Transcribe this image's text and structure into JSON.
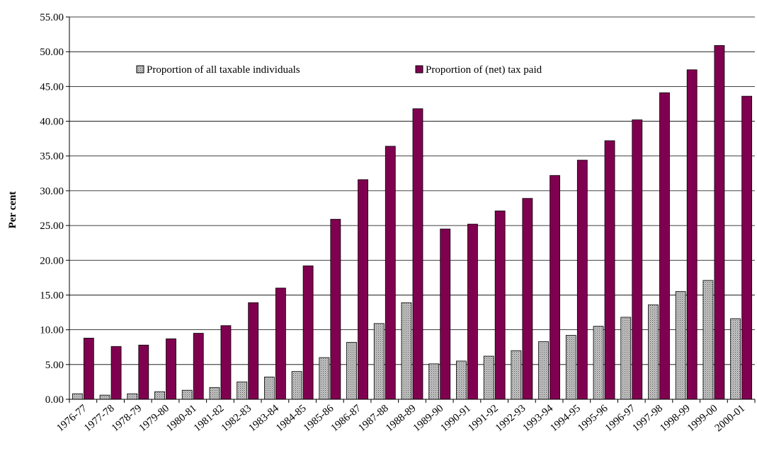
{
  "chart_data": {
    "type": "bar",
    "title": "",
    "xlabel": "",
    "ylabel": "Per cent",
    "ylim": [
      0,
      55
    ],
    "ytick_step": 5,
    "ytick_format_decimals": 2,
    "grid": "horizontal",
    "legend_position": "top (inside plot)",
    "categories": [
      "1976-77",
      "1977-78",
      "1978-79",
      "1979-80",
      "1980-81",
      "1981-82",
      "1982-83",
      "1983-84",
      "1984-85",
      "1985-86",
      "1986-87",
      "1987-88",
      "1988-89",
      "1989-90",
      "1990-91",
      "1991-92",
      "1992-93",
      "1993-94",
      "1994-95",
      "1995-96",
      "1996-97",
      "1997-98",
      "1998-99",
      "1999-00",
      "2000-01"
    ],
    "series": [
      {
        "name": "Proportion of all taxable individuals",
        "color": "#a0a0a0",
        "pattern": "dotted-grey",
        "values": [
          0.8,
          0.6,
          0.8,
          1.1,
          1.3,
          1.7,
          2.5,
          3.2,
          4.0,
          6.0,
          8.2,
          10.9,
          13.9,
          5.1,
          5.5,
          6.2,
          7.0,
          8.3,
          9.2,
          10.5,
          11.8,
          13.6,
          15.5,
          17.1,
          11.6
        ]
      },
      {
        "name": "Proportion of (net) tax paid",
        "color": "#800050",
        "values": [
          8.8,
          7.6,
          7.8,
          8.7,
          9.5,
          10.6,
          13.9,
          16.0,
          19.2,
          25.9,
          31.6,
          36.4,
          41.8,
          24.5,
          25.2,
          27.1,
          28.9,
          32.2,
          34.4,
          37.2,
          40.2,
          44.1,
          47.4,
          50.9,
          43.6
        ]
      }
    ]
  }
}
